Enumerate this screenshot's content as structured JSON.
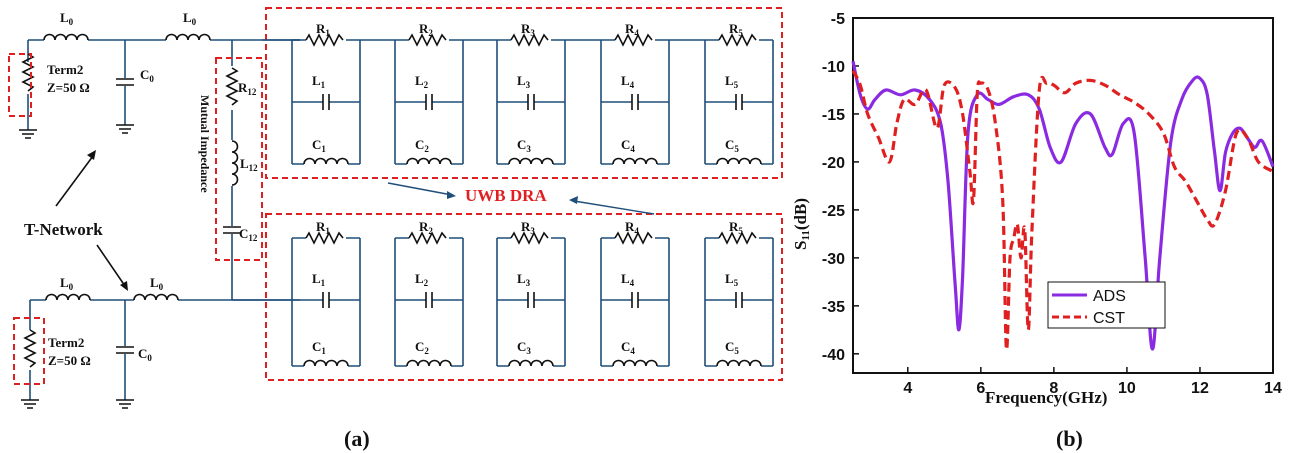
{
  "figure": {
    "panel_a": "(a)",
    "panel_b": "(b)"
  },
  "circuit": {
    "L0": "L",
    "L0_sub": "0",
    "C0": "C",
    "C0_sub": "0",
    "term_label": "Term2",
    "term_imp": "Z=50 Ω",
    "t_network": "T-Network",
    "mutual": "Mutual  Impedance",
    "R12": "R",
    "R12_sub": "12",
    "L12": "L",
    "L12_sub": "12",
    "C12": "C",
    "C12_sub": "12",
    "uwb": "UWB DRA",
    "cells_top": [
      {
        "R": "1",
        "L": "1",
        "C": "1"
      },
      {
        "R": "2",
        "L": "2",
        "C": "2"
      },
      {
        "R": "3",
        "L": "3",
        "C": "3"
      },
      {
        "R": "4",
        "L": "4",
        "C": "4"
      },
      {
        "R": "5",
        "L": "5",
        "C": "5"
      }
    ],
    "cells_bottom": [
      {
        "R": "1",
        "L": "1",
        "C": "1"
      },
      {
        "R": "2",
        "L": "2",
        "C": "2"
      },
      {
        "R": "3",
        "L": "3",
        "C": "3"
      },
      {
        "R": "4",
        "L": "4",
        "C": "4"
      },
      {
        "R": "5",
        "L": "5",
        "C": "5"
      }
    ]
  },
  "chart_data": {
    "type": "line",
    "xlabel": "Frequency(GHz)",
    "ylabel": "S",
    "ylabel_sub": "11",
    "ylabel_tail": "(dB)",
    "xlim": [
      2.5,
      14
    ],
    "ylim": [
      -42,
      -5
    ],
    "xticks": [
      4,
      6,
      8,
      10,
      12,
      14
    ],
    "yticks": [
      -5,
      -10,
      -15,
      -20,
      -25,
      -30,
      -35,
      -40
    ],
    "legend": "bottom-left",
    "series": [
      {
        "name": "ADS",
        "color": "#8a2be2",
        "dash": "solid",
        "x": [
          2.5,
          2.7,
          2.9,
          3.1,
          3.4,
          3.8,
          4.2,
          4.6,
          4.9,
          5.1,
          5.3,
          5.4,
          5.5,
          5.65,
          5.9,
          6.2,
          6.5,
          6.9,
          7.3,
          7.6,
          7.9,
          8.2,
          8.6,
          9.0,
          9.4,
          9.6,
          9.9,
          10.2,
          10.5,
          10.7,
          10.9,
          11.2,
          11.5,
          11.8,
          12.0,
          12.2,
          12.4,
          12.55,
          12.7,
          12.9,
          13.1,
          13.3,
          13.5,
          13.7,
          14.0
        ],
        "y": [
          -9.5,
          -13,
          -14.5,
          -13.5,
          -12.5,
          -13,
          -12.5,
          -13.5,
          -16,
          -22,
          -33,
          -37.5,
          -32,
          -17,
          -13,
          -13.5,
          -14,
          -13.2,
          -13,
          -14.5,
          -18.5,
          -20,
          -16,
          -15,
          -18.5,
          -19.2,
          -16,
          -17,
          -30,
          -39.5,
          -30,
          -18,
          -13.5,
          -11.5,
          -11.3,
          -13,
          -19,
          -23,
          -19,
          -17,
          -16.5,
          -17.5,
          -18.5,
          -17.8,
          -20.5
        ]
      },
      {
        "name": "CST",
        "color": "#e02020",
        "dash": "dashed",
        "x": [
          2.5,
          2.7,
          2.9,
          3.2,
          3.5,
          3.7,
          3.9,
          4.2,
          4.5,
          4.8,
          5.0,
          5.3,
          5.5,
          5.7,
          5.8,
          5.9,
          6.0,
          6.2,
          6.4,
          6.6,
          6.7,
          6.8,
          6.9,
          7.0,
          7.1,
          7.2,
          7.3,
          7.4,
          7.6,
          7.8,
          8.0,
          8.3,
          8.6,
          9.0,
          9.4,
          9.8,
          10.2,
          10.6,
          11.0,
          11.3,
          11.6,
          11.9,
          12.2,
          12.4,
          12.7,
          13.0,
          13.3,
          13.6,
          14.0
        ],
        "y": [
          -10.5,
          -12,
          -15,
          -17.5,
          -20,
          -16,
          -13.5,
          -14,
          -12.5,
          -16.5,
          -12,
          -12.3,
          -15,
          -21,
          -24,
          -13,
          -11.8,
          -12.5,
          -16,
          -24,
          -39.5,
          -30,
          -28,
          -26.5,
          -30,
          -27,
          -37.5,
          -27,
          -12.5,
          -11.8,
          -12,
          -12.8,
          -11.8,
          -11.5,
          -12,
          -13,
          -13.8,
          -15,
          -17,
          -20.5,
          -22,
          -24,
          -26,
          -26.5,
          -23,
          -17,
          -17.5,
          -20,
          -21
        ]
      }
    ]
  }
}
